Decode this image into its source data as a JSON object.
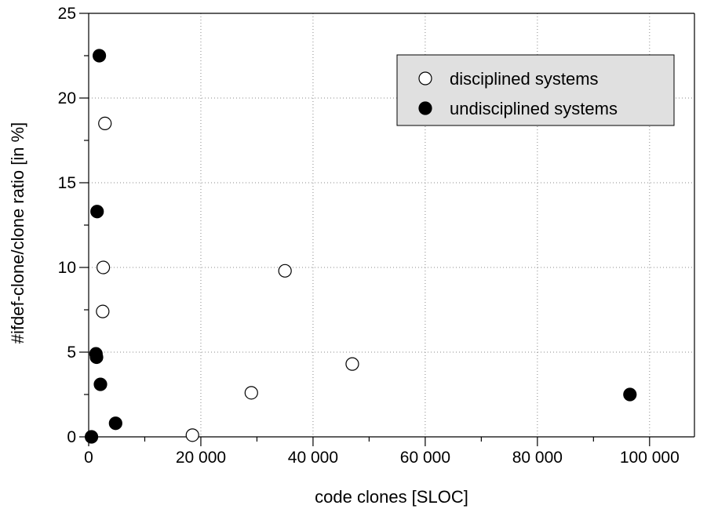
{
  "chart_data": {
    "type": "scatter",
    "title": "",
    "xlabel": "code clones [SLOC]",
    "ylabel": "#ifdef-clone/clone ratio [in %]",
    "xlim": [
      0,
      108000
    ],
    "ylim": [
      0,
      25
    ],
    "x_ticks": [
      0,
      20000,
      40000,
      60000,
      80000,
      100000
    ],
    "x_tick_labels": [
      "0",
      "20 000",
      "40 000",
      "60 000",
      "80 000",
      "100 000"
    ],
    "y_ticks": [
      0,
      5,
      10,
      15,
      20,
      25
    ],
    "y_tick_labels": [
      "0",
      "5",
      "10",
      "15",
      "20",
      "25"
    ],
    "grid": true,
    "legend_position": "top-right",
    "series": [
      {
        "name": "disciplined systems",
        "marker": "open-circle",
        "color": "#000000",
        "points": [
          {
            "x": 2900,
            "y": 18.5
          },
          {
            "x": 2600,
            "y": 10.0
          },
          {
            "x": 2500,
            "y": 7.4
          },
          {
            "x": 18500,
            "y": 0.1
          },
          {
            "x": 29000,
            "y": 2.6
          },
          {
            "x": 35000,
            "y": 9.8
          },
          {
            "x": 47000,
            "y": 4.3
          }
        ]
      },
      {
        "name": "undisciplined systems",
        "marker": "filled-circle",
        "color": "#000000",
        "points": [
          {
            "x": 1900,
            "y": 22.5
          },
          {
            "x": 1500,
            "y": 13.3
          },
          {
            "x": 1300,
            "y": 4.9
          },
          {
            "x": 1400,
            "y": 4.7
          },
          {
            "x": 2100,
            "y": 3.1
          },
          {
            "x": 4800,
            "y": 0.8
          },
          {
            "x": 500,
            "y": 0.0
          },
          {
            "x": 96500,
            "y": 2.5
          }
        ]
      }
    ]
  }
}
